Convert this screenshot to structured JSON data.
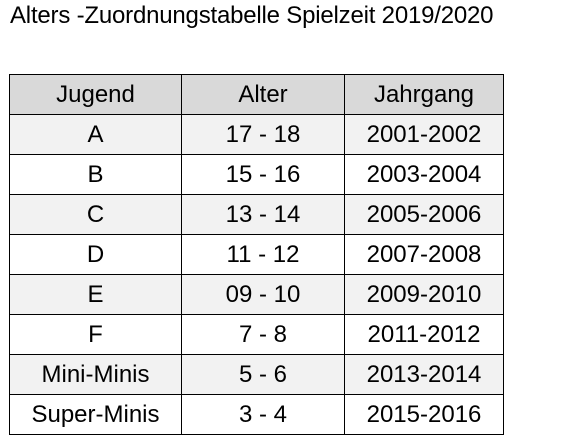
{
  "document": {
    "title": "Alters -Zuordnungstabelle Spielzeit 2019/2020"
  },
  "table": {
    "headers": [
      "Jugend",
      "Alter",
      "Jahrgang"
    ],
    "rows": [
      [
        "A",
        "17 - 18",
        "2001-2002"
      ],
      [
        "B",
        "15 - 16",
        "2003-2004"
      ],
      [
        "C",
        "13 - 14",
        "2005-2006"
      ],
      [
        "D",
        "11 - 12",
        "2007-2008"
      ],
      [
        "E",
        "09 - 10",
        "2009-2010"
      ],
      [
        "F",
        "7 - 8",
        "2011-2012"
      ],
      [
        "Mini-Minis",
        "5 - 6",
        "2013-2014"
      ],
      [
        "Super-Minis",
        "3 - 4",
        "2015-2016"
      ]
    ]
  },
  "colors": {
    "header_background": "#d9d9d9",
    "odd_row_background": "#f2f2f2",
    "even_row_background": "#ffffff",
    "border": "#000000"
  }
}
